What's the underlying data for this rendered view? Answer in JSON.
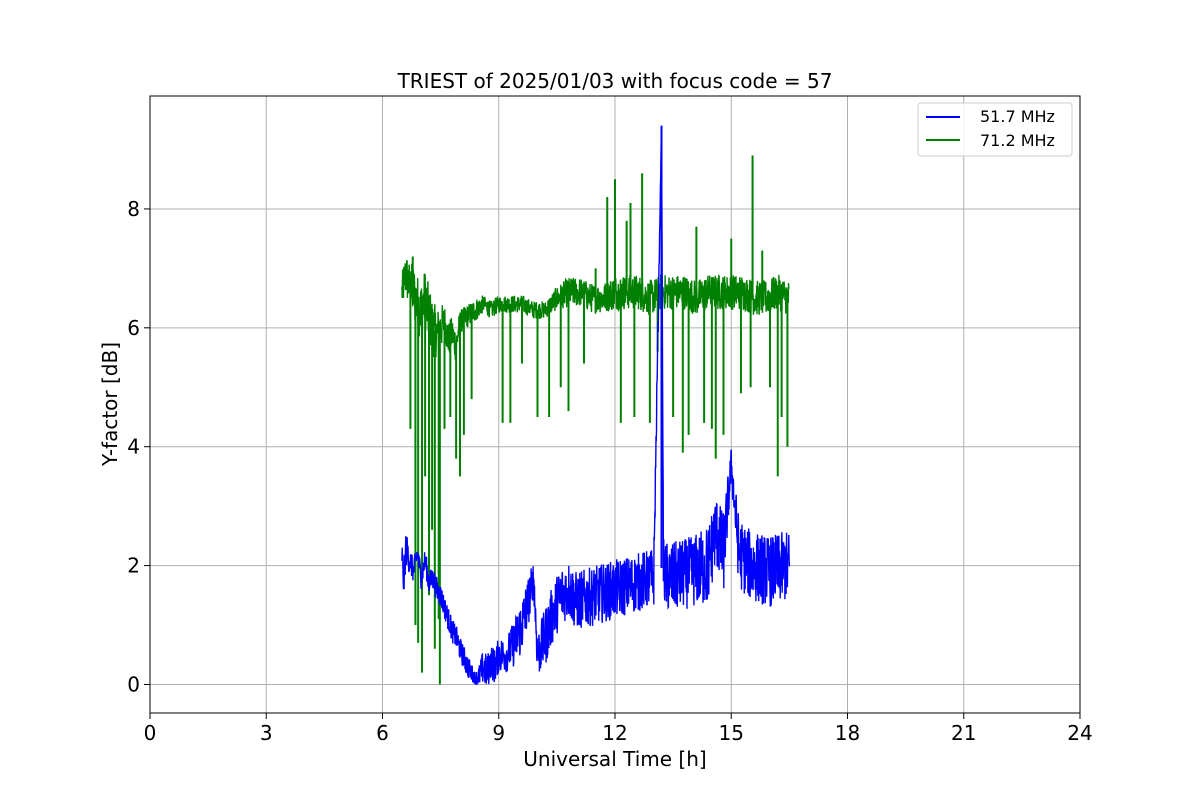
{
  "chart_data": {
    "type": "line",
    "title": "TRIEST of 2025/01/03 with focus code = 57",
    "xlabel": "Universal Time [h]",
    "ylabel": "Y-factor [dB]",
    "xlim": [
      0,
      24
    ],
    "ylim": [
      -0.48,
      9.9
    ],
    "xticks": [
      0,
      3,
      6,
      9,
      12,
      15,
      18,
      21,
      24
    ],
    "yticks": [
      0,
      2,
      4,
      6,
      8
    ],
    "grid": true,
    "legend_position": "top-right",
    "series": [
      {
        "name": "51.7 MHz",
        "color": "#0000ff",
        "x": [
          6.5,
          6.55,
          6.6,
          6.7,
          6.8,
          6.9,
          7.0,
          7.1,
          7.2,
          7.3,
          7.4,
          7.5,
          7.6,
          7.7,
          7.8,
          7.9,
          8.0,
          8.1,
          8.2,
          8.3,
          8.4,
          8.5,
          8.6,
          8.7,
          8.8,
          8.9,
          9.0,
          9.2,
          9.4,
          9.6,
          9.8,
          9.9,
          10.0,
          10.2,
          10.4,
          10.6,
          10.8,
          11.0,
          11.5,
          12.0,
          12.5,
          13.0,
          13.2,
          13.25,
          13.3,
          13.5,
          14.0,
          14.4,
          14.6,
          14.8,
          15.0,
          15.2,
          15.5,
          16.0,
          16.5
        ],
        "y": [
          2.2,
          1.7,
          2.3,
          2.1,
          1.9,
          2.2,
          1.8,
          2.1,
          1.7,
          1.8,
          1.6,
          1.5,
          1.3,
          1.1,
          0.9,
          0.8,
          0.6,
          0.45,
          0.3,
          0.2,
          0.1,
          0.15,
          0.3,
          0.2,
          0.4,
          0.3,
          0.5,
          0.5,
          0.7,
          1.0,
          1.5,
          1.8,
          0.5,
          0.8,
          1.2,
          1.5,
          1.6,
          1.4,
          1.5,
          1.6,
          1.7,
          1.8,
          9.4,
          2.0,
          1.8,
          1.8,
          1.9,
          2.0,
          2.6,
          2.2,
          3.7,
          2.2,
          2.0,
          1.9,
          2.0
        ],
        "noise_band": [
          0.3,
          0.3,
          0.3,
          0.25,
          0.2,
          0.2,
          0.2,
          0.2,
          0.2,
          0.2,
          0.2,
          0.2,
          0.2,
          0.2,
          0.2,
          0.2,
          0.2,
          0.2,
          0.2,
          0.15,
          0.1,
          0.2,
          0.3,
          0.3,
          0.3,
          0.3,
          0.3,
          0.3,
          0.4,
          0.5,
          0.4,
          0.3,
          0.4,
          0.5,
          0.5,
          0.5,
          0.5,
          0.5,
          0.5,
          0.5,
          0.5,
          0.5,
          0.0,
          0.5,
          0.6,
          0.6,
          0.6,
          0.7,
          0.6,
          0.7,
          0.3,
          0.6,
          0.6,
          0.6,
          0.6
        ]
      },
      {
        "name": "71.2 MHz",
        "color": "#008000",
        "x": [
          6.5,
          6.6,
          6.7,
          6.8,
          6.9,
          7.0,
          7.1,
          7.2,
          7.3,
          7.4,
          7.5,
          7.6,
          7.7,
          7.8,
          7.9,
          8.0,
          8.2,
          8.4,
          8.6,
          8.8,
          9.0,
          9.3,
          9.6,
          9.9,
          10.2,
          10.5,
          10.8,
          11.1,
          11.4,
          11.7,
          12.0,
          12.3,
          12.6,
          12.9,
          13.2,
          13.5,
          13.8,
          14.1,
          14.4,
          14.7,
          15.0,
          15.3,
          15.6,
          15.9,
          16.2,
          16.5
        ],
        "y": [
          6.6,
          6.9,
          6.7,
          6.6,
          6.4,
          6.3,
          6.5,
          6.2,
          6.0,
          5.9,
          6.0,
          6.1,
          5.8,
          5.9,
          5.7,
          6.1,
          6.2,
          6.3,
          6.4,
          6.3,
          6.4,
          6.4,
          6.4,
          6.3,
          6.3,
          6.5,
          6.6,
          6.6,
          6.5,
          6.5,
          6.6,
          6.6,
          6.6,
          6.5,
          6.6,
          6.6,
          6.6,
          6.5,
          6.6,
          6.6,
          6.6,
          6.6,
          6.5,
          6.5,
          6.6,
          6.5
        ],
        "noise_band": [
          0.3,
          0.4,
          0.4,
          0.5,
          0.5,
          0.5,
          0.5,
          0.5,
          0.5,
          0.4,
          0.4,
          0.3,
          0.3,
          0.3,
          0.3,
          0.2,
          0.2,
          0.2,
          0.15,
          0.15,
          0.15,
          0.15,
          0.15,
          0.15,
          0.15,
          0.2,
          0.25,
          0.25,
          0.25,
          0.25,
          0.3,
          0.3,
          0.3,
          0.3,
          0.3,
          0.3,
          0.3,
          0.3,
          0.3,
          0.3,
          0.3,
          0.3,
          0.3,
          0.3,
          0.3,
          0.3
        ],
        "spikes": [
          {
            "x": 6.72,
            "y": 4.3
          },
          {
            "x": 6.78,
            "y": 7.2
          },
          {
            "x": 6.85,
            "y": 1.0
          },
          {
            "x": 6.92,
            "y": 0.7
          },
          {
            "x": 7.02,
            "y": 0.2
          },
          {
            "x": 7.1,
            "y": 3.5
          },
          {
            "x": 7.2,
            "y": 1.5
          },
          {
            "x": 7.28,
            "y": 2.6
          },
          {
            "x": 7.35,
            "y": 0.6
          },
          {
            "x": 7.45,
            "y": 1.1
          },
          {
            "x": 7.48,
            "y": 0.0
          },
          {
            "x": 7.6,
            "y": 4.3
          },
          {
            "x": 7.75,
            "y": 4.5
          },
          {
            "x": 7.9,
            "y": 3.8
          },
          {
            "x": 8.0,
            "y": 3.5
          },
          {
            "x": 8.1,
            "y": 4.2
          },
          {
            "x": 8.3,
            "y": 4.8
          },
          {
            "x": 9.1,
            "y": 4.4
          },
          {
            "x": 9.3,
            "y": 4.4
          },
          {
            "x": 9.6,
            "y": 5.4
          },
          {
            "x": 10.0,
            "y": 4.5
          },
          {
            "x": 10.3,
            "y": 4.5
          },
          {
            "x": 10.6,
            "y": 5.0
          },
          {
            "x": 10.8,
            "y": 4.6
          },
          {
            "x": 11.2,
            "y": 5.4
          },
          {
            "x": 11.5,
            "y": 7.0
          },
          {
            "x": 11.8,
            "y": 8.2
          },
          {
            "x": 12.0,
            "y": 8.5
          },
          {
            "x": 12.15,
            "y": 4.4
          },
          {
            "x": 12.3,
            "y": 7.8
          },
          {
            "x": 12.4,
            "y": 8.1
          },
          {
            "x": 12.5,
            "y": 4.5
          },
          {
            "x": 12.7,
            "y": 8.6
          },
          {
            "x": 12.9,
            "y": 4.4
          },
          {
            "x": 13.1,
            "y": 5.6
          },
          {
            "x": 13.5,
            "y": 4.5
          },
          {
            "x": 13.75,
            "y": 3.9
          },
          {
            "x": 13.9,
            "y": 4.2
          },
          {
            "x": 14.1,
            "y": 7.7
          },
          {
            "x": 14.3,
            "y": 4.4
          },
          {
            "x": 14.5,
            "y": 4.3
          },
          {
            "x": 14.6,
            "y": 3.8
          },
          {
            "x": 14.8,
            "y": 4.2
          },
          {
            "x": 15.0,
            "y": 7.5
          },
          {
            "x": 15.25,
            "y": 4.9
          },
          {
            "x": 15.5,
            "y": 5.0
          },
          {
            "x": 15.55,
            "y": 8.9
          },
          {
            "x": 15.8,
            "y": 7.3
          },
          {
            "x": 16.0,
            "y": 5.0
          },
          {
            "x": 16.2,
            "y": 3.5
          },
          {
            "x": 16.3,
            "y": 4.5
          },
          {
            "x": 16.45,
            "y": 4.0
          }
        ]
      }
    ]
  }
}
